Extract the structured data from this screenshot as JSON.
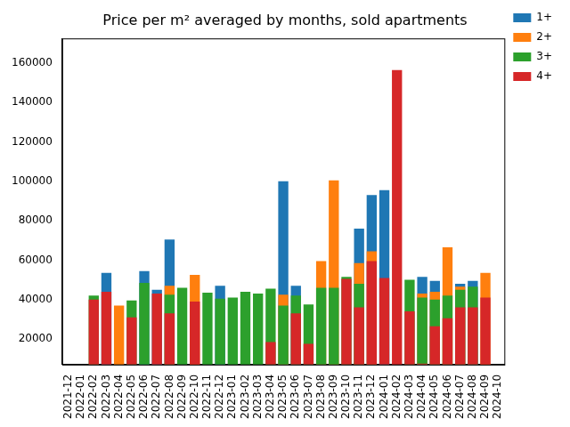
{
  "chart_data": {
    "type": "bar",
    "title": "Price per m² averaged by months, sold apartments",
    "categories": [
      "2021-12",
      "2022-01",
      "2022-02",
      "2022-03",
      "2022-04",
      "2022-05",
      "2022-06",
      "2022-07",
      "2022-08",
      "2022-09",
      "2022-10",
      "2022-11",
      "2022-12",
      "2023-01",
      "2023-02",
      "2023-03",
      "2023-04",
      "2023-05",
      "2023-06",
      "2023-07",
      "2023-08",
      "2023-09",
      "2023-10",
      "2023-11",
      "2023-12",
      "2024-01",
      "2024-02",
      "2024-03",
      "2024-04",
      "2024-05",
      "2024-06",
      "2024-07",
      "2024-08",
      "2024-09",
      "2024-10"
    ],
    "series": [
      {
        "name": "1+",
        "color": "#1f77b4",
        "values": [
          null,
          null,
          null,
          53500,
          null,
          null,
          54500,
          45000,
          70500,
          null,
          null,
          null,
          47000,
          null,
          null,
          null,
          null,
          100000,
          47000,
          null,
          null,
          null,
          null,
          76000,
          93000,
          95500,
          null,
          null,
          51500,
          49500,
          null,
          48000,
          49500,
          null,
          null
        ]
      },
      {
        "name": "2+",
        "color": "#ff7f0e",
        "values": [
          null,
          null,
          null,
          null,
          37000,
          null,
          null,
          null,
          47000,
          null,
          52500,
          null,
          null,
          null,
          null,
          null,
          null,
          42500,
          null,
          null,
          59500,
          100500,
          null,
          58500,
          64500,
          null,
          null,
          null,
          43000,
          44000,
          66500,
          46500,
          null,
          53500,
          null
        ]
      },
      {
        "name": "3+",
        "color": "#2ca02c",
        "values": [
          null,
          null,
          42000,
          null,
          null,
          39500,
          48500,
          null,
          42500,
          46000,
          null,
          43500,
          40500,
          41000,
          44000,
          43000,
          45500,
          37000,
          42000,
          37500,
          46000,
          46000,
          51500,
          48000,
          null,
          null,
          null,
          50000,
          41000,
          40000,
          42000,
          45000,
          46500,
          null,
          null
        ]
      },
      {
        "name": "4+",
        "color": "#d62728",
        "values": [
          null,
          null,
          40000,
          44000,
          null,
          31000,
          null,
          43000,
          33000,
          null,
          39000,
          null,
          null,
          null,
          null,
          null,
          18500,
          null,
          33000,
          17500,
          null,
          null,
          50500,
          36000,
          59500,
          51000,
          156500,
          34000,
          7500,
          26500,
          30500,
          36000,
          36000,
          41000,
          null
        ]
      }
    ],
    "ylim": [
      7000,
      172500
    ],
    "yticks": [
      20000,
      40000,
      60000,
      80000,
      100000,
      120000,
      140000,
      160000
    ],
    "grid": false,
    "legend": "upper right"
  }
}
